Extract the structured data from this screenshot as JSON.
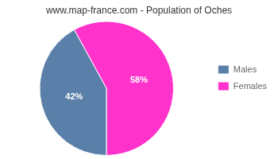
{
  "chart_data": {
    "type": "pie",
    "title": "www.map-france.com - Population of Oches",
    "categories": [
      "Males",
      "Females"
    ],
    "values": [
      42,
      58
    ],
    "value_labels": [
      "42%",
      "58%"
    ],
    "data_labels": true,
    "colors": [
      "#5a7fa8",
      "#ff33cc"
    ],
    "legend": "right"
  }
}
